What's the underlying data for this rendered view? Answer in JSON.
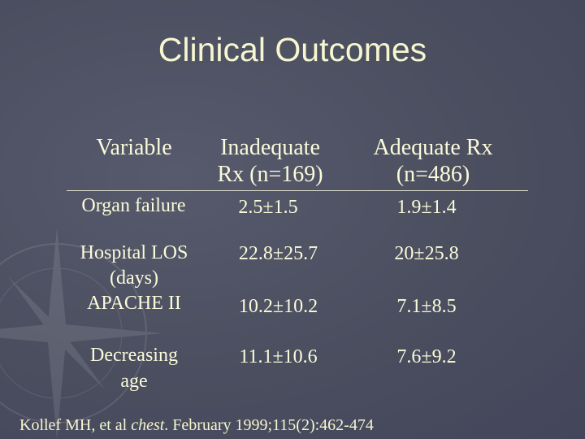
{
  "title": "Clinical Outcomes",
  "table": {
    "headers": {
      "variable": "Variable",
      "inadequate_line1": "Inadequate",
      "inadequate_line2": "Rx (n=169)",
      "adequate_line1": "Adequate Rx",
      "adequate_line2": "(n=486)"
    },
    "rows": [
      {
        "label_line1": "Organ failure",
        "label_line2": "",
        "inadequate": "2.5±1.5",
        "adequate": "1.9±1.4"
      },
      {
        "label_line1": "Hospital LOS",
        "label_line2": "(days)",
        "inadequate": "22.8±25.7",
        "adequate": "20±25.8"
      },
      {
        "label_line1": "APACHE II",
        "label_line2": "",
        "inadequate": "10.2±10.2",
        "adequate": "7.1±8.5"
      },
      {
        "label_line1": "Decreasing",
        "label_line2": "age",
        "inadequate": "11.1±10.6",
        "adequate": "7.6±9.2"
      }
    ]
  },
  "citation": {
    "before": "Kollef MH, et al ",
    "journal": "chest",
    "after": ". February 1999;115(2):462-474"
  }
}
